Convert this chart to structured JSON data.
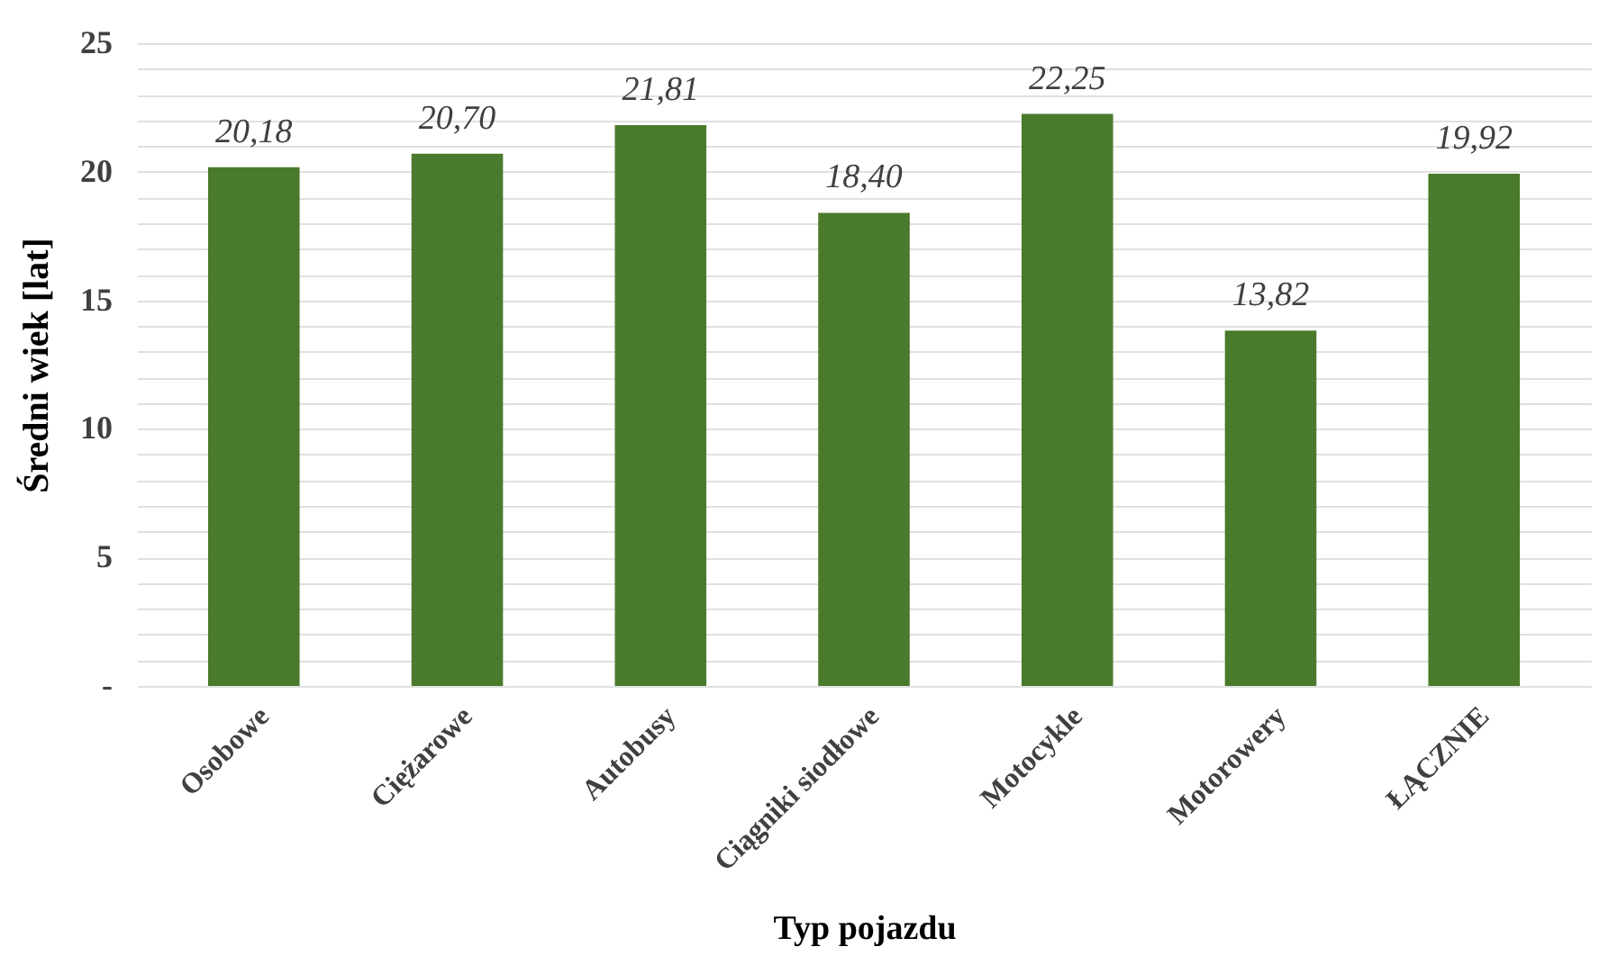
{
  "chart_data": {
    "type": "bar",
    "xlabel": "Typ pojazdu",
    "ylabel": "Średni wiek [lat]",
    "categories": [
      "Osobowe",
      "Ciężarowe",
      "Autobusy",
      "Ciągniki siodłowe",
      "Motocykle",
      "Motorowery",
      "ŁĄCZNIE"
    ],
    "values": [
      20.18,
      20.7,
      21.81,
      18.4,
      22.25,
      13.82,
      19.92
    ],
    "value_labels": [
      "20,18",
      "20,70",
      "21,81",
      "18,40",
      "22,25",
      "13,82",
      "19,92"
    ],
    "color": "#4a7a2c",
    "ylim": [
      0,
      25
    ],
    "yticks": [
      {
        "value": 0,
        "label": "-"
      },
      {
        "value": 1,
        "label": null
      },
      {
        "value": 2,
        "label": null
      },
      {
        "value": 3,
        "label": null
      },
      {
        "value": 4,
        "label": null
      },
      5,
      {
        "value": 6,
        "label": null
      },
      {
        "value": 7,
        "label": null
      },
      {
        "value": 8,
        "label": null
      },
      {
        "value": 9,
        "label": null
      },
      10,
      {
        "value": 11,
        "label": null
      },
      {
        "value": 12,
        "label": null
      },
      {
        "value": 13,
        "label": null
      },
      {
        "value": 14,
        "label": null
      },
      15,
      {
        "value": 16,
        "label": null
      },
      {
        "value": 17,
        "label": null
      },
      {
        "value": 18,
        "label": null
      },
      {
        "value": 19,
        "label": null
      },
      20,
      {
        "value": 21,
        "label": null
      },
      {
        "value": 22,
        "label": null
      },
      {
        "value": 23,
        "label": null
      },
      {
        "value": 24,
        "label": null
      },
      25
    ],
    "grid": "y"
  }
}
